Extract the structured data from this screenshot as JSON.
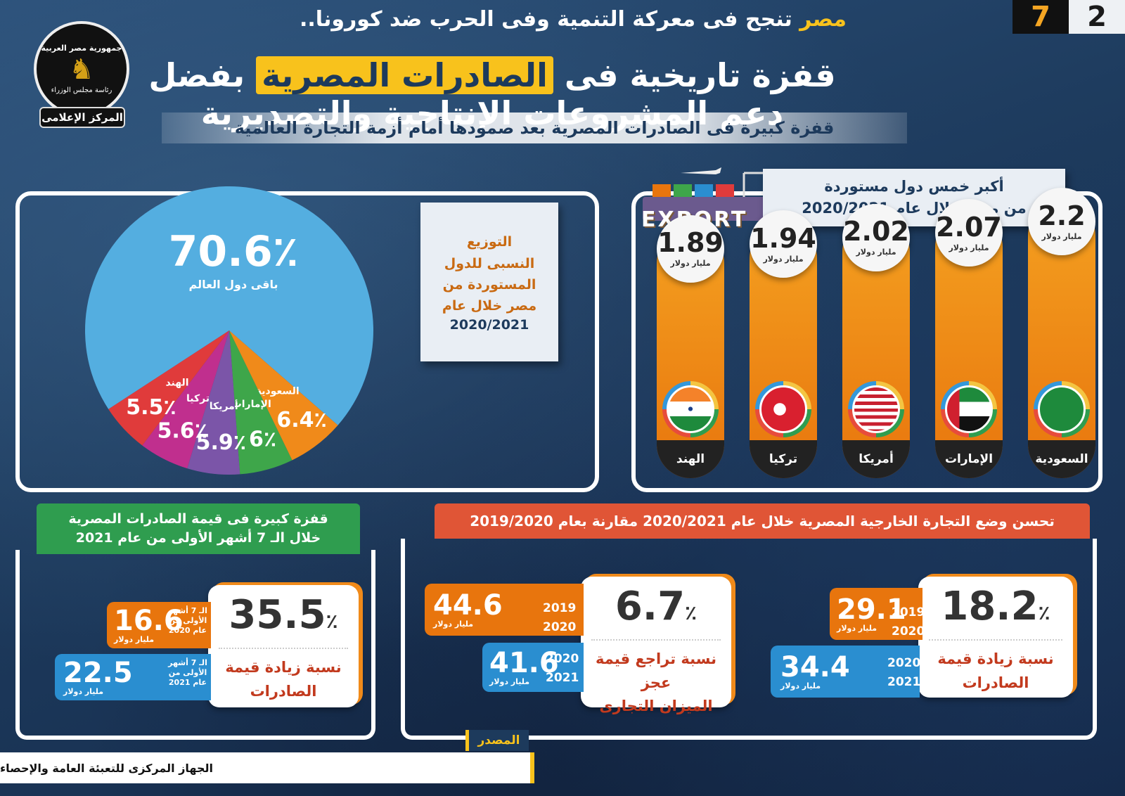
{
  "header": {
    "page_num_a": "2",
    "page_num_b": "7",
    "top_line_highlight": "مصر",
    "top_line_rest": "تنجح فى معركة التنمية وفى الحرب ضد كورونا..",
    "headline_part1": "قفزة تاريخية فى",
    "headline_highlight": "الصادرات المصرية",
    "headline_part2": "بفضل دعم المشروعات الإنتاجية والتصديرية",
    "subtitle": "قفزة كبيرة فى  الصادرات المصرية بعد صمودها أمام أزمة التجارة العالمية"
  },
  "logo": {
    "line1": "جمهورية مصر العربية",
    "line2": "رئاسة مجلس الوزراء",
    "tag": "المركز الإعلامى"
  },
  "pie_note": {
    "lines": [
      "التوزيع",
      "النسبى للدول",
      "المستوردة من",
      "مصر خلال عام"
    ],
    "year": "2020/2021"
  },
  "bar_title": {
    "line1": "أكبر خمس دول مستوردة",
    "line2": "من مصر خلال عام 2020/2021",
    "export_word": "EXPORT"
  },
  "unit_billion_usd": "مليار دولار",
  "chart_data": [
    {
      "type": "pie",
      "title": "التوزيع النسبى للدول المستوردة من مصر خلال عام 2020/2021",
      "unit": "%",
      "slices": [
        {
          "label": "باقى دول العالم",
          "value": 70.6,
          "display": "70.6",
          "color": "#54aee0"
        },
        {
          "label": "السعودية",
          "value": 6.4,
          "display": "6.4",
          "color": "#f08a1a"
        },
        {
          "label": "الإمارات",
          "value": 6,
          "display": "6",
          "color": "#3ea64a"
        },
        {
          "label": "أمريكا",
          "value": 5.9,
          "display": "5.9",
          "color": "#7b55a8"
        },
        {
          "label": "تركيا",
          "value": 5.6,
          "display": "5.6",
          "color": "#c02f8e"
        },
        {
          "label": "الهند",
          "value": 5.5,
          "display": "5.5",
          "color": "#e03b3b"
        }
      ]
    },
    {
      "type": "bar",
      "title": "أكبر خمس دول مستوردة من مصر خلال عام 2020/2021",
      "unit": "مليار دولار",
      "categories": [
        "السعودية",
        "الإمارات",
        "أمريكا",
        "تركيا",
        "الهند"
      ],
      "values": [
        2.2,
        2.07,
        2.02,
        1.94,
        1.89
      ],
      "display": [
        "2.2",
        "2.07",
        "2.02",
        "1.94",
        "1.89"
      ]
    }
  ],
  "trade_section": {
    "ribbon": "تحسن وضع التجارة الخارجية المصرية خلال عام 2020/2021 مقارنة بعام 2019/2020",
    "exports_card": {
      "pct": "18.2",
      "label_line1": "نسبة زيادة قيمة",
      "label_line2": "الصادرات"
    },
    "exports_prev": {
      "years": [
        "2019",
        "2020"
      ],
      "value": "29.1"
    },
    "exports_curr": {
      "years": [
        "2020",
        "2021"
      ],
      "value": "34.4"
    },
    "deficit_card": {
      "pct": "6.7",
      "label_line1": "نسبة تراجع قيمة عجز",
      "label_line2": "الميزان التجارى"
    },
    "deficit_prev": {
      "years": [
        "2019",
        "2020"
      ],
      "value": "44.6"
    },
    "deficit_curr": {
      "years": [
        "2020",
        "2021"
      ],
      "value": "41.6"
    }
  },
  "seven_months_section": {
    "ribbon_line1": "قفزة كبيرة فى قيمة الصادرات المصرية",
    "ribbon_line2": "خلال الـ 7 أشهر الأولى من عام 2021",
    "card": {
      "pct": "35.5",
      "label_line1": "نسبة زيادة قيمة",
      "label_line2": "الصادرات"
    },
    "prev": {
      "label_lines": [
        "الـ 7 أشهر",
        "الأولى من",
        "عام 2020"
      ],
      "value": "16.6"
    },
    "curr": {
      "label_lines": [
        "الـ 7 أشهر",
        "الأولى من",
        "عام 2021"
      ],
      "value": "22.5"
    }
  },
  "source": {
    "tag": "المصدر",
    "text": "الجهاز المركزى للتعبئة العامة والإحصاء"
  },
  "percent_sign": "٪"
}
